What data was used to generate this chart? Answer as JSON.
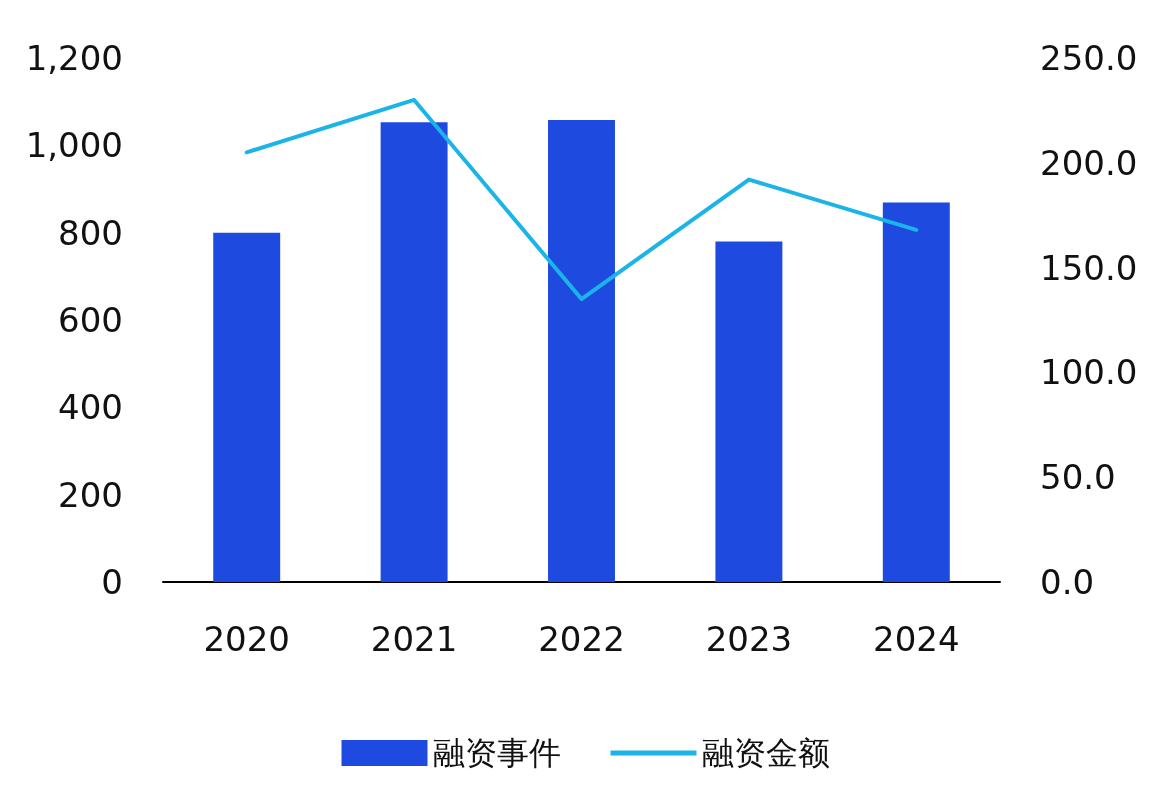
{
  "chart_data": {
    "type": "bar",
    "categories": [
      "2020",
      "2021",
      "2022",
      "2023",
      "2024"
    ],
    "series": [
      {
        "name": "融资事件",
        "color": "#1f4ae0",
        "values": [
          800,
          1053,
          1058,
          780,
          869
        ]
      },
      {
        "name": "融资金额",
        "type": "line",
        "axis": "y2",
        "color": "#1ab4e8",
        "values": [
          205,
          230,
          135,
          192,
          168
        ]
      }
    ],
    "ylim": [
      0,
      1200
    ],
    "yticks": [
      0,
      200,
      400,
      600,
      800,
      {
        "value": 1000,
        "label": "1,000"
      },
      {
        "value": 1200,
        "label": "1,200"
      }
    ],
    "y2lim": [
      0,
      250
    ],
    "y2ticks": [
      {
        "value": 0,
        "label": "0.0"
      },
      {
        "value": 50,
        "label": "50.0"
      },
      {
        "value": 100,
        "label": "100.0"
      },
      {
        "value": 150,
        "label": "150.0"
      },
      {
        "value": 200,
        "label": "200.0"
      },
      {
        "value": 250,
        "label": "250.0"
      }
    ],
    "grid": false,
    "legend": "bottom",
    "marker": "none",
    "line_style": "solid"
  }
}
